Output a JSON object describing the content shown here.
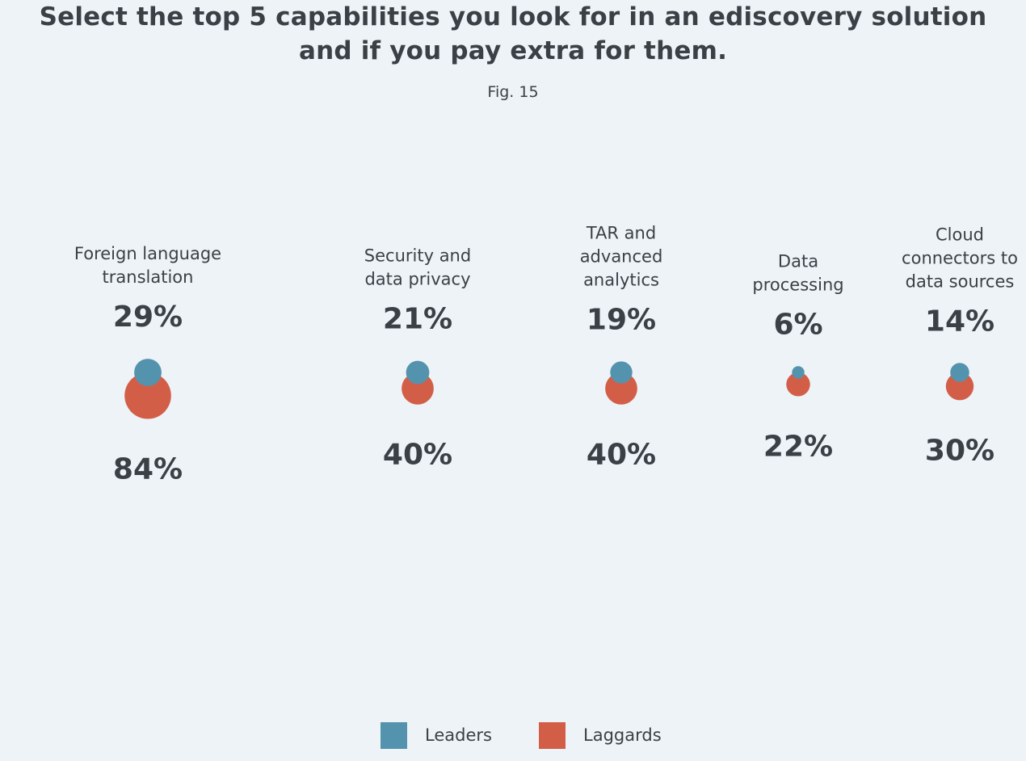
{
  "title": {
    "line1": "Select the top 5 capabilities you look for in an ediscovery solution",
    "line2": "and if you pay extra for them."
  },
  "figure_label": "Fig. 15",
  "colors": {
    "background": "#edf3f7",
    "leaders": "#5393ad",
    "laggards": "#d35e48",
    "text": "#3b4046"
  },
  "legend": {
    "leaders_label": "Leaders",
    "laggards_label": "Laggards"
  },
  "chart_data": {
    "type": "bubble",
    "title": "Select the top 5 capabilities you look for in an ediscovery solution and if you pay extra for them.",
    "subtitle": "Fig. 15",
    "categories": [
      "Foreign language translation",
      "Security and data privacy",
      "TAR and advanced analytics",
      "Data processing",
      "Cloud connectors to data sources"
    ],
    "category_lines": [
      [
        "Foreign language",
        "translation"
      ],
      [
        "Security and",
        "data privacy"
      ],
      [
        "TAR and",
        "advanced",
        "analytics"
      ],
      [
        "Data",
        "processing"
      ],
      [
        "Cloud",
        "connectors to",
        "data sources"
      ]
    ],
    "series": [
      {
        "name": "Leaders",
        "values": [
          29,
          21,
          19,
          6,
          14
        ]
      },
      {
        "name": "Laggards",
        "values": [
          84,
          40,
          40,
          22,
          30
        ]
      }
    ],
    "value_suffix": "%",
    "legend_position": "bottom-center"
  }
}
